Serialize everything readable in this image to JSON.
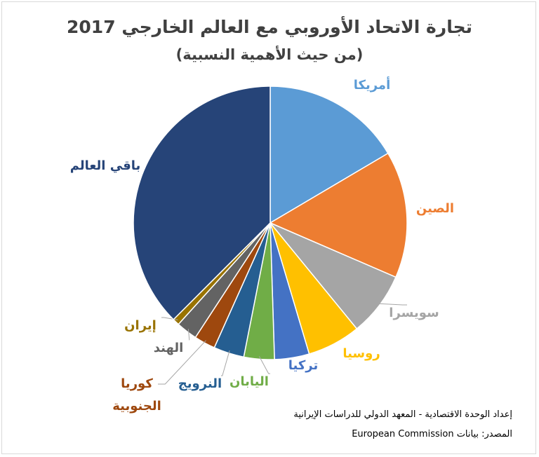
{
  "chart_data": {
    "type": "pie",
    "title": "تجارة الاتحاد الأوروبي مع العالم الخارجي 2017",
    "subtitle": "(من حيث الأهمية النسبية)",
    "categories": [
      "أمريكا",
      "الصين",
      "سويسرا",
      "روسيا",
      "تركيا",
      "اليابان",
      "النرويج",
      "كوريا الجنوبية",
      "الهند",
      "إيران",
      "باقي العالم"
    ],
    "values": [
      16.5,
      15,
      7.6,
      6.3,
      4.1,
      3.6,
      3.6,
      2.5,
      2.5,
      0.8,
      37.5
    ],
    "colors": [
      "#5b9bd5",
      "#ed7d31",
      "#a5a5a5",
      "#ffc000",
      "#4472c4",
      "#70ad47",
      "#255e91",
      "#9e480e",
      "#636363",
      "#997300",
      "#264478"
    ],
    "credit": "إعداد الوحدة الاقتصادية - المعهد الدولي للدراسات الإيرانية",
    "source": "المصدر: بيانات European Commission"
  }
}
